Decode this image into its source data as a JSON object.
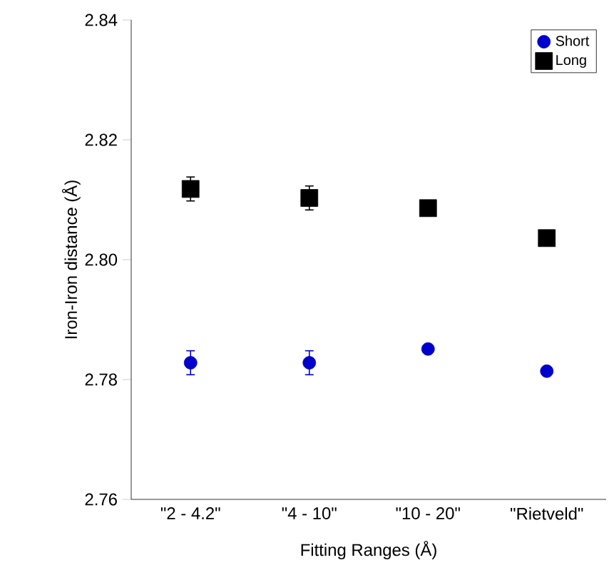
{
  "chart_data": {
    "type": "scatter",
    "xlabel": "Fitting Ranges (Å)",
    "ylabel": "Iron-Iron distance (Å)",
    "categories": [
      "\"2 - 4.2\"",
      "\"4 - 10\"",
      "\"10 - 20\"",
      "\"Rietveld\""
    ],
    "ylim": [
      2.76,
      2.84
    ],
    "yticks": [
      2.76,
      2.78,
      {
        "value": 2.8,
        "label": "2.80"
      },
      2.82,
      2.84
    ],
    "grid": false,
    "legend": "top right",
    "series": [
      {
        "name": "Short",
        "color": "#0000cc",
        "marker": "circle",
        "values": [
          2.7828,
          2.7828,
          2.7851,
          2.7814
        ],
        "errors": [
          0.002,
          0.002,
          null,
          null
        ]
      },
      {
        "name": "Long",
        "color": "#000000",
        "marker": "square",
        "values": [
          2.8118,
          2.8103,
          2.8086,
          2.8036
        ],
        "errors": [
          0.002,
          0.002,
          null,
          null
        ]
      }
    ]
  }
}
